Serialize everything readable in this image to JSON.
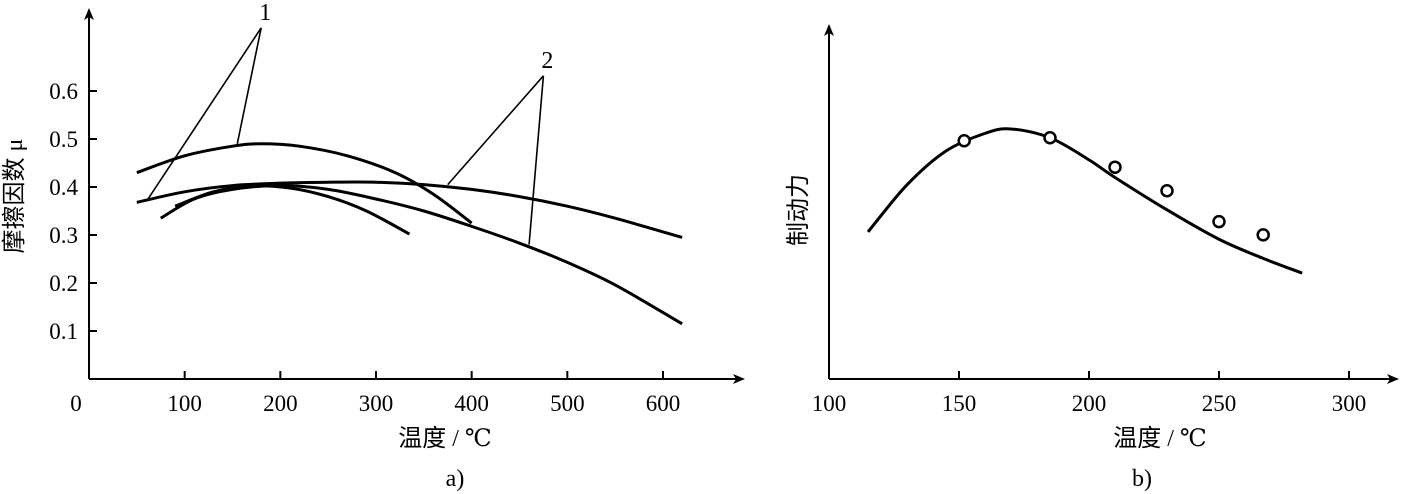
{
  "chart_data": [
    {
      "type": "line",
      "panel_label": "a)",
      "xlabel": "温度 / ℃",
      "ylabel": "摩擦因数 μ",
      "xlim": [
        0,
        700
      ],
      "ylim": [
        0,
        0.7
      ],
      "x_ticks": [
        "0",
        "100",
        "200",
        "300",
        "400",
        "500",
        "600"
      ],
      "x_tick_values": [
        0,
        100,
        200,
        300,
        400,
        500,
        600
      ],
      "y_ticks": [
        "0.1",
        "0.2",
        "0.3",
        "0.4",
        "0.5",
        "0.6"
      ],
      "y_tick_values": [
        0.1,
        0.2,
        0.3,
        0.4,
        0.5,
        0.6
      ],
      "grid": false,
      "series": [
        {
          "group": "1",
          "points": [
            [
              50,
              0.43
            ],
            [
              100,
              0.465
            ],
            [
              150,
              0.485
            ],
            [
              180,
              0.49
            ],
            [
              220,
              0.485
            ],
            [
              270,
              0.465
            ],
            [
              320,
              0.43
            ],
            [
              360,
              0.385
            ],
            [
              400,
              0.325
            ]
          ]
        },
        {
          "group": "1",
          "points": [
            [
              90,
              0.36
            ],
            [
              130,
              0.39
            ],
            [
              170,
              0.402
            ],
            [
              210,
              0.398
            ],
            [
              250,
              0.38
            ],
            [
              290,
              0.35
            ],
            [
              335,
              0.302
            ]
          ]
        },
        {
          "group": "2",
          "points": [
            [
              50,
              0.368
            ],
            [
              100,
              0.39
            ],
            [
              150,
              0.403
            ],
            [
              200,
              0.408
            ],
            [
              250,
              0.41
            ],
            [
              300,
              0.41
            ],
            [
              350,
              0.405
            ],
            [
              400,
              0.395
            ],
            [
              450,
              0.38
            ],
            [
              500,
              0.36
            ],
            [
              550,
              0.335
            ],
            [
              620,
              0.295
            ]
          ]
        },
        {
          "group": "2",
          "points": [
            [
              75,
              0.335
            ],
            [
              110,
              0.375
            ],
            [
              150,
              0.395
            ],
            [
              200,
              0.403
            ],
            [
              250,
              0.395
            ],
            [
              300,
              0.375
            ],
            [
              350,
              0.35
            ],
            [
              400,
              0.318
            ],
            [
              450,
              0.283
            ],
            [
              500,
              0.243
            ],
            [
              550,
              0.196
            ],
            [
              620,
              0.115
            ]
          ]
        }
      ],
      "callouts": [
        {
          "label": "1",
          "anchor": [
            180,
            0.74
          ],
          "targets": [
            [
              60,
              0.37
            ],
            [
              155,
              0.49
            ]
          ]
        },
        {
          "label": "2",
          "anchor": [
            475,
            0.64
          ],
          "targets": [
            [
              375,
              0.405
            ],
            [
              460,
              0.28
            ]
          ]
        }
      ]
    },
    {
      "type": "line",
      "panel_label": "b)",
      "xlabel": "温度 / ℃",
      "ylabel": "制动力",
      "xlim": [
        100,
        320
      ],
      "ylim": [
        0,
        10
      ],
      "x_ticks": [
        "100",
        "150",
        "200",
        "250",
        "300"
      ],
      "x_tick_values": [
        100,
        150,
        200,
        250,
        300
      ],
      "y_ticks": [],
      "grid": false,
      "series": [
        {
          "name": "",
          "points": [
            [
              115,
              5.0
            ],
            [
              130,
              6.6
            ],
            [
              145,
              7.75
            ],
            [
              160,
              8.35
            ],
            [
              170,
              8.5
            ],
            [
              185,
              8.2
            ],
            [
              200,
              7.45
            ],
            [
              210,
              6.85
            ],
            [
              230,
              5.75
            ],
            [
              250,
              4.75
            ],
            [
              267,
              4.1
            ],
            [
              282,
              3.6
            ]
          ]
        }
      ],
      "markers": [
        [
          152,
          8.1
        ],
        [
          185,
          8.2
        ],
        [
          210,
          7.2
        ],
        [
          230,
          6.4
        ],
        [
          250,
          5.35
        ],
        [
          267,
          4.9
        ]
      ]
    }
  ]
}
